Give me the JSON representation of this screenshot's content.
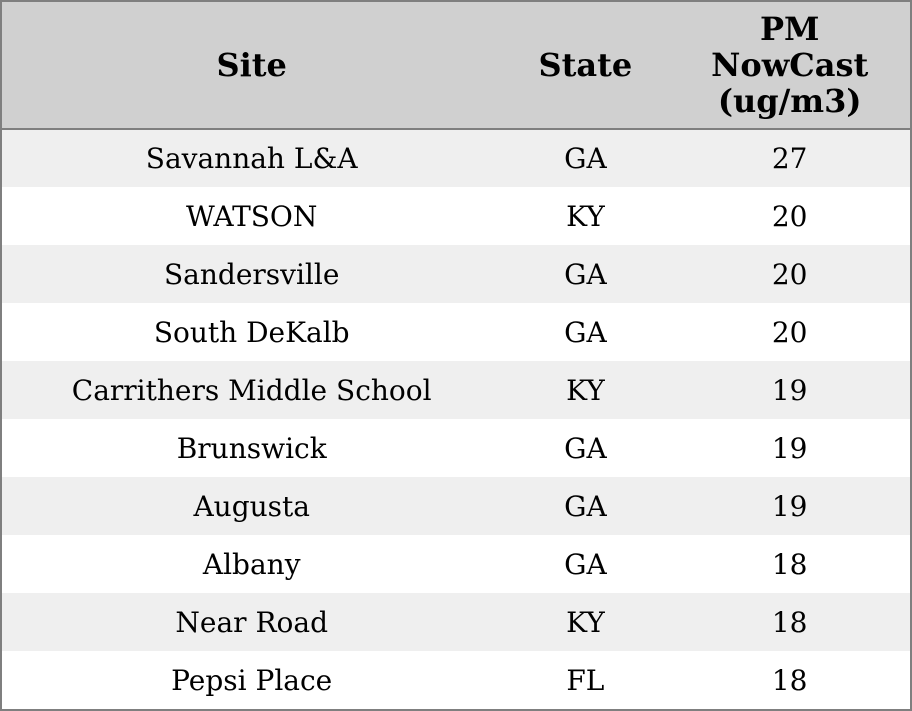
{
  "table": {
    "header": {
      "site": "Site",
      "state": "State",
      "pm": "PM NowCast (ug/m3)"
    },
    "rows": [
      {
        "site": "Savannah L&A",
        "state": "GA",
        "pm": "27"
      },
      {
        "site": "WATSON",
        "state": "KY",
        "pm": "20"
      },
      {
        "site": "Sandersville",
        "state": "GA",
        "pm": "20"
      },
      {
        "site": "South DeKalb",
        "state": "GA",
        "pm": "20"
      },
      {
        "site": "Carrithers Middle School",
        "state": "KY",
        "pm": "19"
      },
      {
        "site": "Brunswick",
        "state": "GA",
        "pm": "19"
      },
      {
        "site": "Augusta",
        "state": "GA",
        "pm": "19"
      },
      {
        "site": "Albany",
        "state": "GA",
        "pm": "18"
      },
      {
        "site": "Near Road",
        "state": "KY",
        "pm": "18"
      },
      {
        "site": "Pepsi Place",
        "state": "FL",
        "pm": "18"
      }
    ]
  },
  "colors": {
    "header_bg": "#d0d0d0",
    "stripe_bg": "#efefef",
    "row_bg": "#ffffff",
    "border": "#7f7f7f",
    "text": "#000000"
  }
}
